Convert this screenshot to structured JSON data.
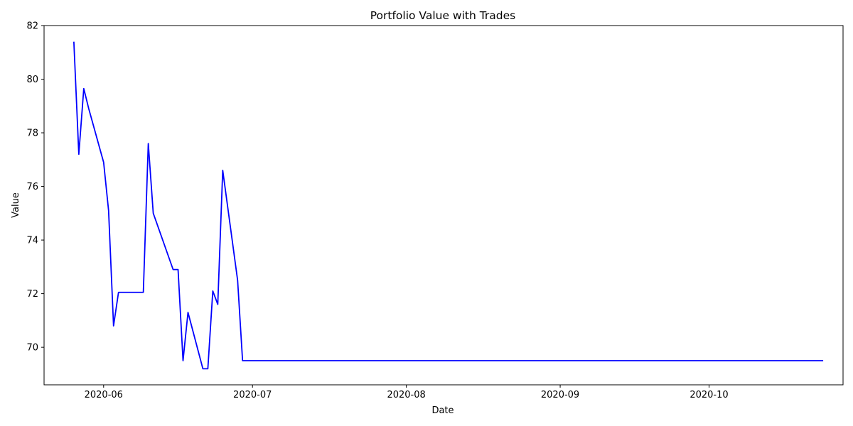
{
  "chart_data": {
    "type": "line",
    "title": "Portfolio Value with Trades",
    "xlabel": "Date",
    "ylabel": "Value",
    "xlim": [
      "2020-05-20",
      "2020-10-28"
    ],
    "ylim": [
      68.6,
      82.0
    ],
    "x_ticks": [
      "2020-06-01",
      "2020-07-01",
      "2020-08-01",
      "2020-09-01",
      "2020-10-01"
    ],
    "x_tick_labels": [
      "2020-06",
      "2020-07",
      "2020-08",
      "2020-09",
      "2020-10"
    ],
    "y_ticks": [
      70,
      72,
      74,
      76,
      78,
      80,
      82
    ],
    "y_tick_labels": [
      "70",
      "72",
      "74",
      "76",
      "78",
      "80",
      "82"
    ],
    "grid": false,
    "series": [
      {
        "color": "#0000ff",
        "x": [
          "2020-05-26",
          "2020-05-27",
          "2020-05-28",
          "2020-05-29",
          "2020-06-01",
          "2020-06-02",
          "2020-06-03",
          "2020-06-04",
          "2020-06-09",
          "2020-06-10",
          "2020-06-11",
          "2020-06-15",
          "2020-06-16",
          "2020-06-17",
          "2020-06-18",
          "2020-06-21",
          "2020-06-22",
          "2020-06-23",
          "2020-06-24",
          "2020-06-25",
          "2020-06-28",
          "2020-06-29",
          "2020-10-24"
        ],
        "y": [
          81.4,
          77.2,
          79.65,
          78.9,
          76.9,
          75.1,
          70.8,
          72.05,
          72.05,
          77.6,
          75.0,
          72.9,
          72.9,
          69.5,
          71.3,
          69.2,
          69.2,
          72.1,
          71.6,
          76.6,
          72.5,
          69.5,
          69.5
        ]
      }
    ]
  }
}
